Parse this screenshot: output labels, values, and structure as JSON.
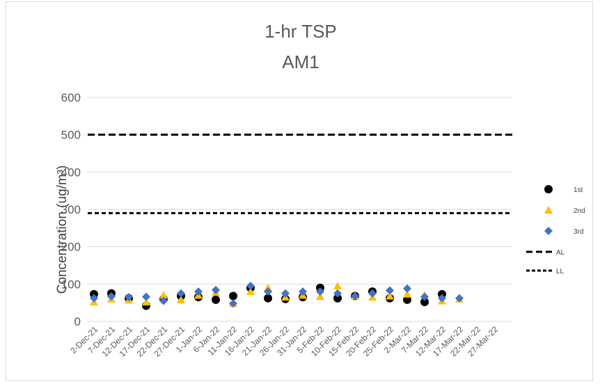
{
  "chart_data": {
    "type": "scatter",
    "title": "1-hr TSP",
    "subtitle": "AM1",
    "ylabel": "Concentration (ug/m³)",
    "xlabel": "",
    "ylim": [
      0,
      600
    ],
    "yticks": [
      0,
      100,
      200,
      300,
      400,
      500,
      600
    ],
    "grid": true,
    "legend_position": "right",
    "categories": [
      "2-Dec-21",
      "7-Dec-21",
      "12-Dec-21",
      "17-Dec-21",
      "22-Dec-21",
      "27-Dec-21",
      "1-Jan-22",
      "6-Jan-22",
      "11-Jan-22",
      "16-Jan-22",
      "21-Jan-22",
      "26-Jan-22",
      "31-Jan-22",
      "5-Feb-22",
      "10-Feb-22",
      "15-Feb-22",
      "20-Feb-22",
      "25-Feb-22",
      "2-Mar-22",
      "7-Mar-22",
      "12-Mar-22",
      "17-Mar-22",
      "22-Mar-22",
      "27-Mar-22"
    ],
    "series": [
      {
        "name": "1st",
        "marker": "circle",
        "color": "#000000",
        "values": [
          73,
          75,
          62,
          42,
          60,
          68,
          65,
          58,
          68,
          90,
          62,
          60,
          65,
          90,
          62,
          68,
          80,
          62,
          58,
          52,
          73
        ]
      },
      {
        "name": "2nd",
        "marker": "triangle",
        "color": "#ffc000",
        "values": [
          52,
          60,
          57,
          52,
          70,
          58,
          70,
          78,
          48,
          80,
          90,
          65,
          70,
          67,
          95,
          68,
          65,
          68,
          73,
          70,
          55,
          60
        ]
      },
      {
        "name": "3rd",
        "marker": "diamond",
        "color": "#4472c4",
        "values": [
          62,
          67,
          65,
          66,
          55,
          75,
          80,
          84,
          48,
          95,
          80,
          75,
          80,
          80,
          75,
          68,
          75,
          83,
          88,
          66,
          62,
          62
        ]
      },
      {
        "name": "AL",
        "line": "dashed",
        "color": "#000000",
        "value": 500
      },
      {
        "name": "LL",
        "line": "dotted",
        "color": "#000000",
        "value": 290
      }
    ]
  }
}
